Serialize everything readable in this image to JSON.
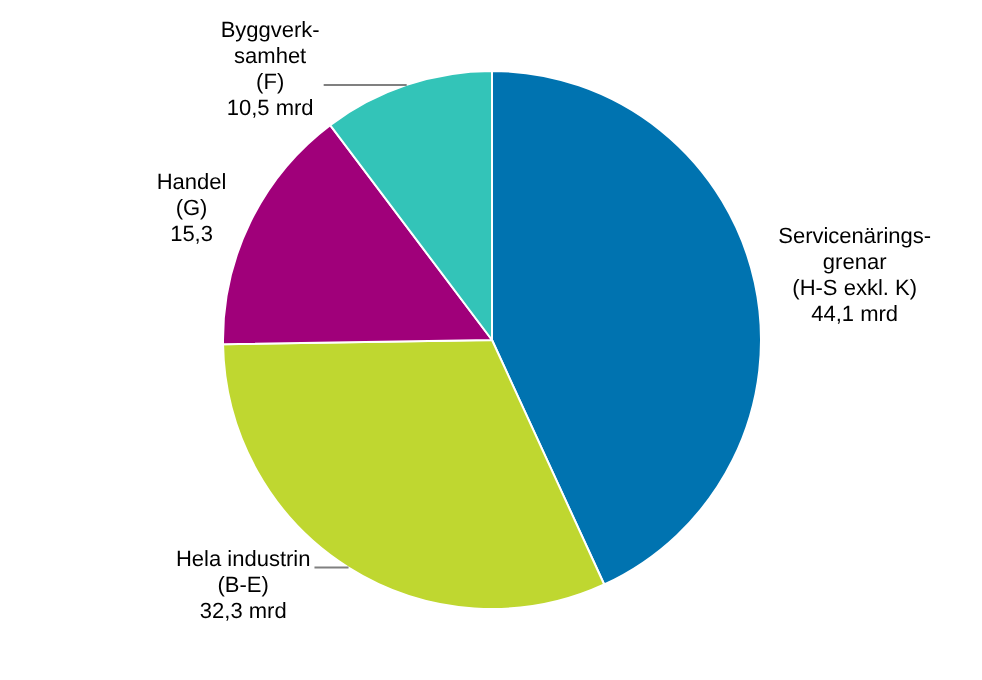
{
  "chart_data": {
    "type": "pie",
    "categories": [
      "Servicenärings-\ngrenar\n(H-S exkl. K)",
      "Hela industrin\n(B-E)",
      "Handel\n(G)",
      "Byggverk-\nsamhet\n(F)"
    ],
    "values": [
      44.1,
      32.3,
      15.3,
      10.5
    ],
    "value_labels": [
      "44,1 mrd",
      "32,3 mrd",
      "15,3",
      "10,5 mrd"
    ],
    "colors": [
      "#0073b0",
      "#bfd730",
      "#a0007a",
      "#33c4b8"
    ],
    "legend": false
  }
}
